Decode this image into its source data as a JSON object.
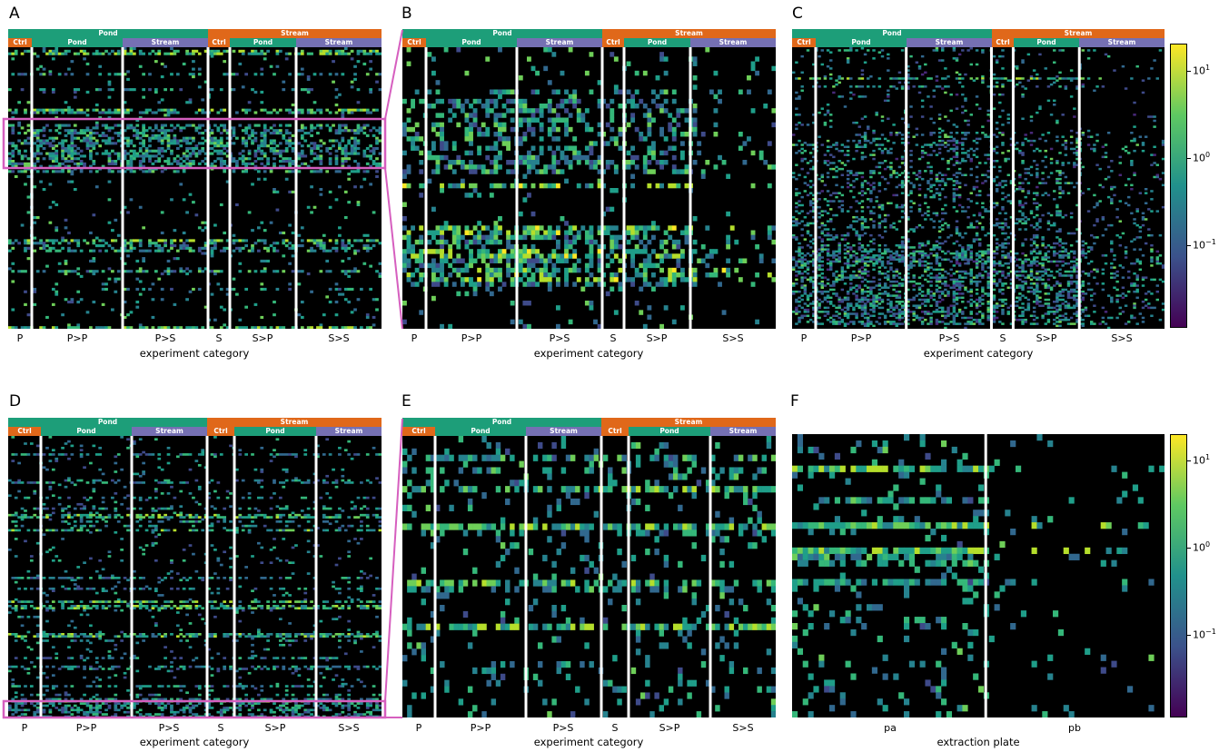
{
  "panel_letters": [
    "A",
    "B",
    "C",
    "D",
    "E",
    "F"
  ],
  "header": {
    "top": [
      {
        "label": "Pond",
        "color": "#1d9e79"
      },
      {
        "label": "Stream",
        "color": "#e0681a"
      }
    ],
    "sub": [
      {
        "label": "Ctrl",
        "color": "#e0681a"
      },
      {
        "label": "Pond",
        "color": "#1d9e79"
      },
      {
        "label": "Stream",
        "color": "#7570b3"
      },
      {
        "label": "Ctrl",
        "color": "#e0681a"
      },
      {
        "label": "Pond",
        "color": "#1d9e79"
      },
      {
        "label": "Stream",
        "color": "#7570b3"
      }
    ]
  },
  "categories": [
    "P",
    "P>P",
    "P>S",
    "S",
    "S>P",
    "S>S"
  ],
  "xlabel_experiment": "experiment category",
  "xlabel_plate": "extraction plate",
  "plates": [
    "pa",
    "pb"
  ],
  "highlight_color": "#d65fbf",
  "chart_data": [
    {
      "panel": "A",
      "type": "heatmap",
      "xlabel": "experiment category",
      "categories": [
        "P",
        "P>P",
        "P>S",
        "S",
        "S>P",
        "S>S"
      ],
      "colormap": "viridis",
      "scale": "log"
    },
    {
      "panel": "B",
      "type": "heatmap",
      "xlabel": "experiment category",
      "categories": [
        "P",
        "P>P",
        "P>S",
        "S",
        "S>P",
        "S>S"
      ],
      "colormap": "viridis",
      "scale": "log",
      "zoom_of": "A"
    },
    {
      "panel": "C",
      "type": "heatmap",
      "xlabel": "experiment category",
      "categories": [
        "P",
        "P>P",
        "P>S",
        "S",
        "S>P",
        "S>S"
      ],
      "colormap": "viridis",
      "scale": "log",
      "colorbar_ticks": [
        "10^1",
        "10^0",
        "10^-1"
      ]
    },
    {
      "panel": "D",
      "type": "heatmap",
      "xlabel": "experiment category",
      "categories": [
        "P",
        "P>P",
        "P>S",
        "S",
        "S>P",
        "S>S"
      ],
      "colormap": "viridis",
      "scale": "log"
    },
    {
      "panel": "E",
      "type": "heatmap",
      "xlabel": "experiment category",
      "categories": [
        "P",
        "P>P",
        "P>S",
        "S",
        "S>P",
        "S>S"
      ],
      "colormap": "viridis",
      "scale": "log",
      "zoom_of": "D"
    },
    {
      "panel": "F",
      "type": "heatmap",
      "xlabel": "extraction plate",
      "categories": [
        "pa",
        "pb"
      ],
      "colormap": "viridis",
      "scale": "log",
      "colorbar_ticks": [
        "10^1",
        "10^0",
        "10^-1"
      ]
    }
  ]
}
